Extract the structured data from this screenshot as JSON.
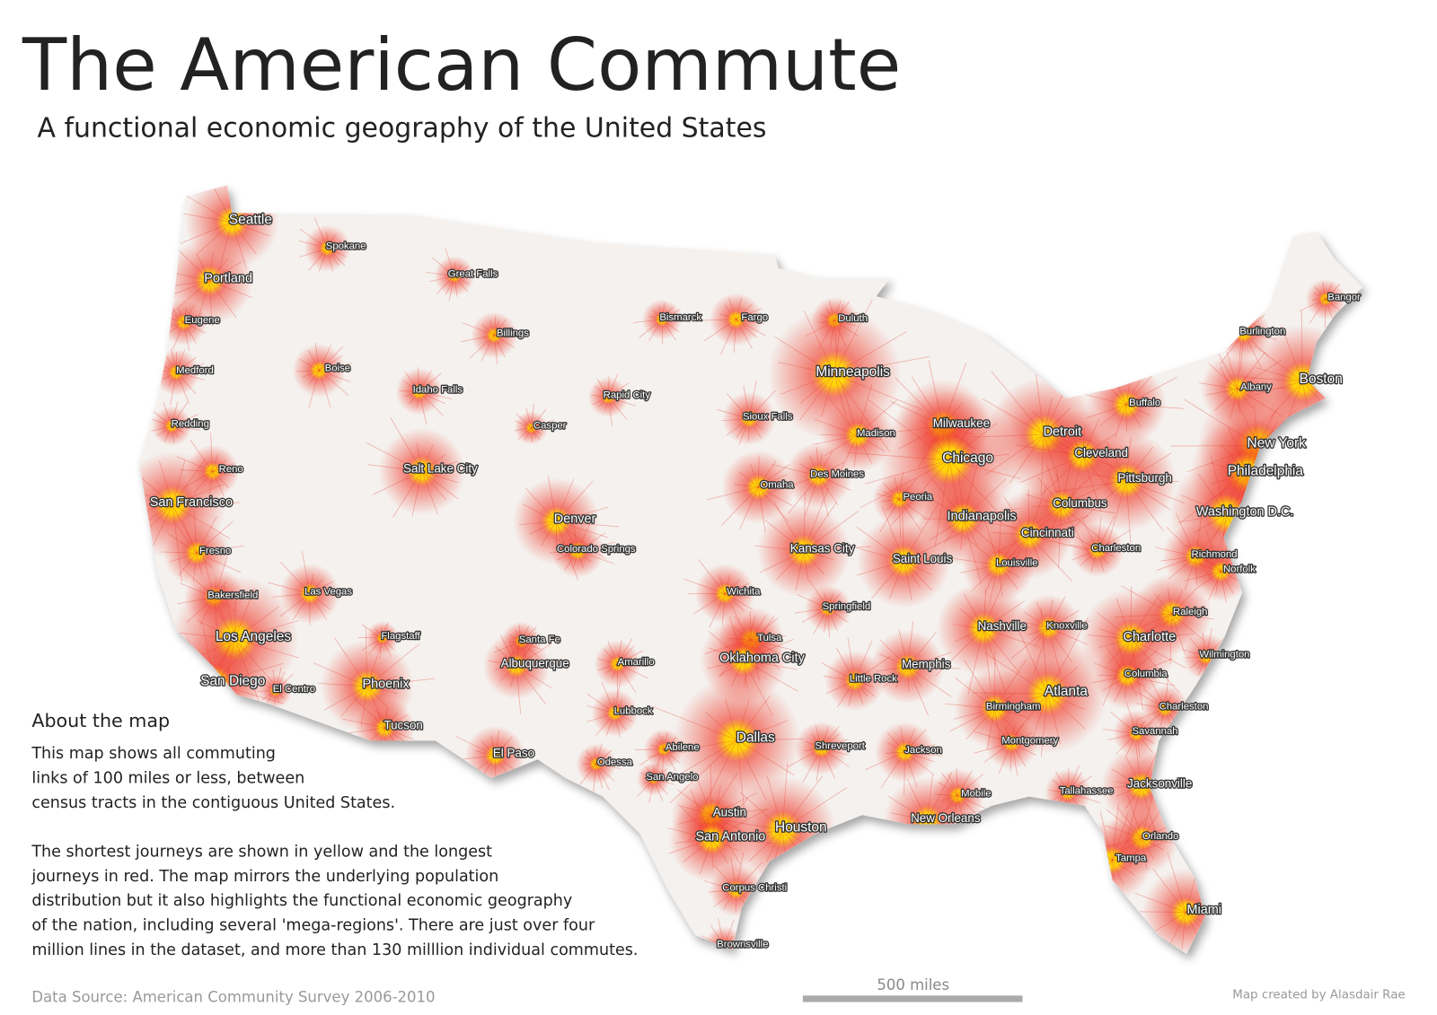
{
  "header": {
    "title": "The American Commute",
    "subtitle": "A functional economic geography of the United States"
  },
  "cities": [
    "Seattle",
    "Spokane",
    "Great Falls",
    "Portland",
    "Eugene",
    "Billings",
    "Bismarck",
    "Fargo",
    "Duluth",
    "Bangor",
    "Burlington",
    "Medford",
    "Boise",
    "Idaho Falls",
    "Rapid City",
    "Minneapolis",
    "Boston",
    "Albany",
    "Buffalo",
    "Redding",
    "Casper",
    "Sioux Falls",
    "Madison",
    "Milwaukee",
    "Detroit",
    "Reno",
    "Salt Lake City",
    "New York",
    "Chicago",
    "Cleveland",
    "Des Moines",
    "Omaha",
    "Pittsburgh",
    "Philadelphia",
    "San Francisco",
    "Peoria",
    "Columbus",
    "Washington D.C.",
    "Denver",
    "Indianapolis",
    "Cincinnati",
    "Colorado Springs",
    "Fresno",
    "Kansas City",
    "Charleston",
    "Saint Louis",
    "Louisville",
    "Richmond",
    "Norfolk",
    "Bakersfield",
    "Las Vegas",
    "Wichita",
    "Springfield",
    "Raleigh",
    "Flagstaff",
    "Los Angeles",
    "Santa Fe",
    "Tulsa",
    "Nashville",
    "Knoxville",
    "Charlotte",
    "Albuquerque",
    "Amarillo",
    "Oklahoma City",
    "Memphis",
    "Wilmington",
    "Columbia",
    "San Diego",
    "El Centro",
    "Phoenix",
    "Little Rock",
    "Atlanta",
    "Birmingham",
    "Charleston",
    "Lubbock",
    "Savannah",
    "Tucson",
    "Montgomery",
    "Dallas",
    "El Paso",
    "Abilene",
    "Shreveport",
    "Jackson",
    "Odessa",
    "San Angelo",
    "Jacksonville",
    "Mobile",
    "Tallahassee",
    "New Orleans",
    "Austin",
    "Houston",
    "San Antonio",
    "Orlando",
    "Tampa",
    "Corpus Christi",
    "Miami",
    "Brownsville"
  ],
  "about": {
    "heading": "About the map",
    "paragraph_1": [
      "This map shows all commuting",
      "links of 100 miles or less, between",
      "census tracts in the contiguous United States."
    ],
    "paragraph_2": [
      "The shortest journeys are shown in yellow and the longest",
      "journeys in red.  The map mirrors the underlying population",
      "distribution but it also highlights the functional economic geography",
      "of the nation, including several 'mega-regions'.  There are just over four",
      "million lines in the dataset, and more than 130 milllion individual commutes."
    ]
  },
  "footer": {
    "source": "Data Source: American Community Survey 2006-2010",
    "scale_label": "500 miles",
    "credit": "Map created by Alasdair Rae"
  }
}
